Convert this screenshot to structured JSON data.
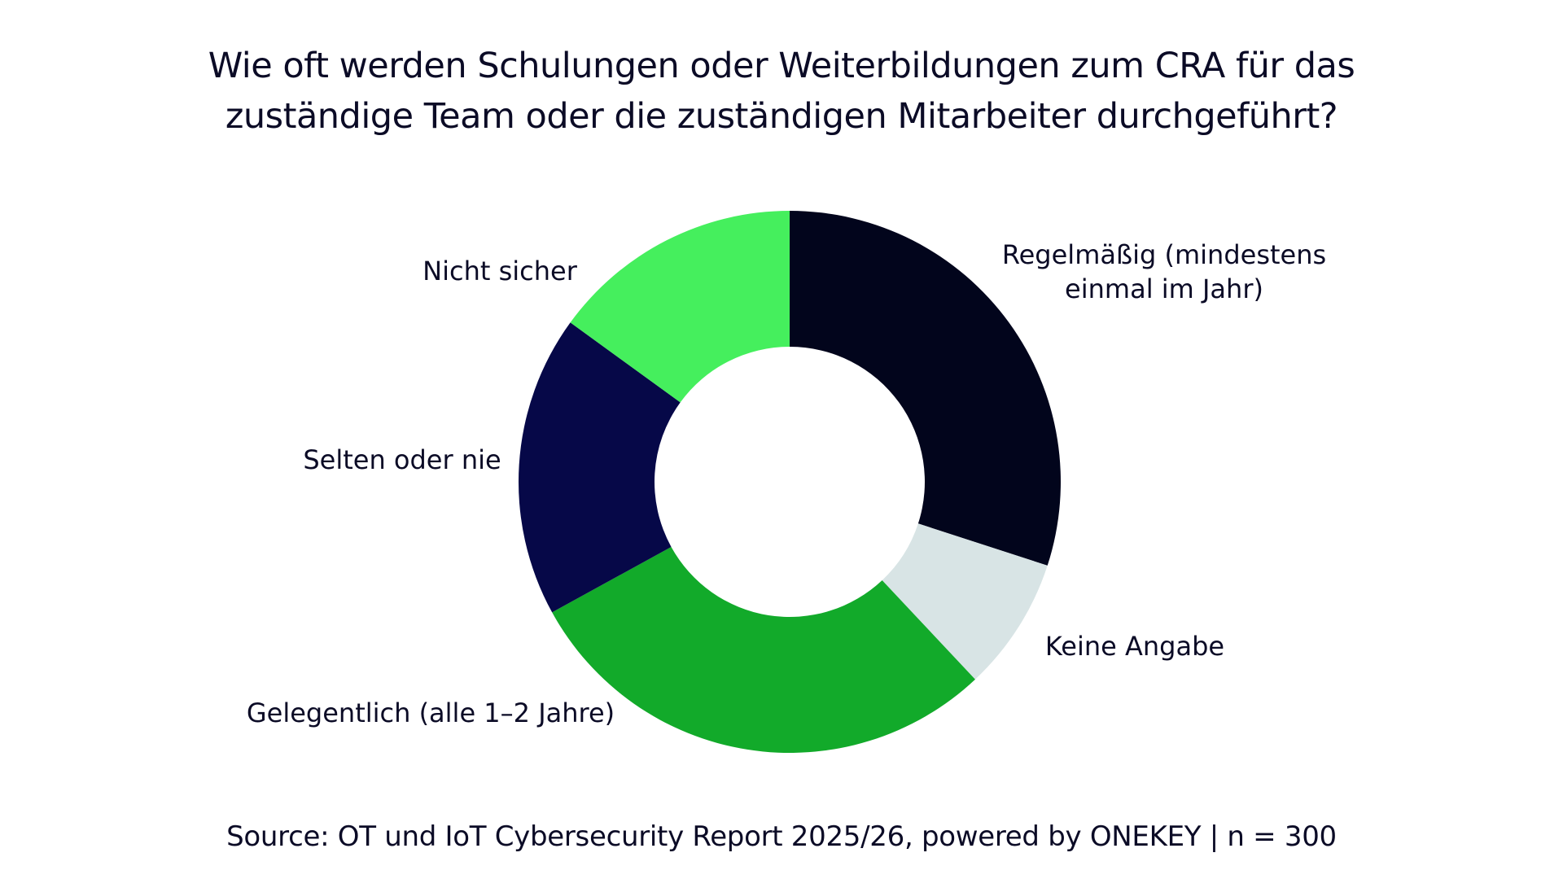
{
  "title_lines": [
    "Wie oft werden Schulungen oder Weiterbildungen zum CRA für das",
    "zuständige Team oder die zuständigen Mitarbeiter durchgeführt?"
  ],
  "source": "Source: OT und IoT Cybersecurity Report 2025/26, powered by ONEKEY | n = 300",
  "chart_data": {
    "type": "pie",
    "donut": true,
    "title": "Wie oft werden Schulungen oder Weiterbildungen zum CRA für das zuständige Team oder die zuständigen Mitarbeiter durchgeführt?",
    "unit": "%",
    "slices": [
      {
        "label_lines": [
          "Regelmäßig (mindestens",
          "einmal im Jahr)"
        ],
        "value": 30,
        "color": "#02051c"
      },
      {
        "label_lines": [
          "Keine Angabe"
        ],
        "value": 8,
        "color": "#d8e4e5"
      },
      {
        "label_lines": [
          "Gelegentlich (alle 1–2 Jahre)"
        ],
        "value": 29,
        "color": "#12aa2a"
      },
      {
        "label_lines": [
          "Selten oder nie"
        ],
        "value": 18,
        "color": "#060848"
      },
      {
        "label_lines": [
          "Nicht sicher"
        ],
        "value": 15,
        "color": "#45ef5d"
      }
    ]
  }
}
